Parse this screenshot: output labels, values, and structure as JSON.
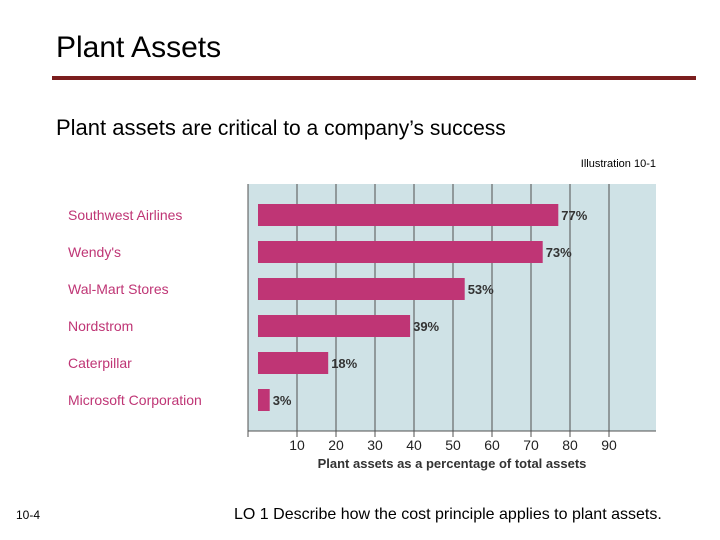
{
  "slide": {
    "title": "Plant Assets",
    "subtitle_bold": "Plant assets",
    "subtitle_rest": " are critical to a company’s success",
    "illustration_label": "Illustration 10-1",
    "page_number": "10-4",
    "learning_objective": "LO 1  Describe how the cost principle applies to plant assets."
  },
  "colors": {
    "rule": "#7b1e1e",
    "bar": "#bf3575",
    "panel_bg": "#cfe2e6",
    "grid": "#505050",
    "category_text": "#bf3575"
  },
  "chart_data": {
    "type": "bar",
    "orientation": "horizontal",
    "categories": [
      "Southwest Airlines",
      "Wendy's",
      "Wal-Mart Stores",
      "Nordstrom",
      "Caterpillar",
      "Microsoft Corporation"
    ],
    "values": [
      77,
      73,
      53,
      39,
      18,
      3
    ],
    "value_labels": [
      "77%",
      "73%",
      "53%",
      "39%",
      "18%",
      "3%"
    ],
    "xticks": [
      10,
      20,
      30,
      40,
      50,
      60,
      70,
      80,
      90
    ],
    "xlabel": "Plant assets as a percentage of total assets",
    "xlim": [
      0,
      100
    ],
    "grid": true
  }
}
